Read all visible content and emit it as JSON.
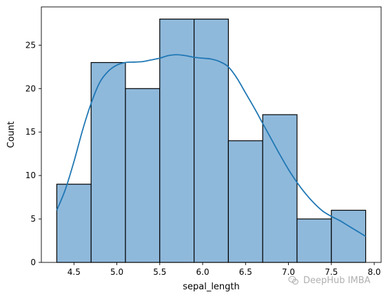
{
  "chart_data": {
    "type": "bar",
    "subtype": "histogram_with_kde",
    "title": "",
    "xlabel": "sepal_length",
    "ylabel": "Count",
    "xlim": [
      4.12,
      8.08
    ],
    "ylim": [
      0,
      29.4
    ],
    "xticks": [
      "4.5",
      "5.0",
      "5.5",
      "6.0",
      "6.5",
      "7.0",
      "7.5",
      "8.0"
    ],
    "yticks": [
      "0",
      "5",
      "10",
      "15",
      "20",
      "25"
    ],
    "bin_edges": [
      4.3,
      4.7,
      5.1,
      5.5,
      5.9,
      6.3,
      6.7,
      7.1,
      7.5,
      7.9
    ],
    "values": [
      9,
      23,
      20,
      28,
      28,
      14,
      17,
      5,
      6
    ],
    "kde": {
      "x": [
        4.3,
        4.4,
        4.5,
        4.6,
        4.7,
        4.8,
        4.9,
        5.0,
        5.1,
        5.2,
        5.3,
        5.4,
        5.5,
        5.6,
        5.7,
        5.8,
        5.9,
        6.0,
        6.1,
        6.2,
        6.3,
        6.4,
        6.5,
        6.6,
        6.7,
        6.8,
        6.9,
        7.0,
        7.1,
        7.2,
        7.3,
        7.4,
        7.5,
        7.6,
        7.7,
        7.8,
        7.9
      ],
      "y": [
        6.0,
        8.4,
        11.6,
        15.2,
        18.3,
        20.7,
        22.0,
        22.7,
        23.0,
        23.05,
        23.1,
        23.3,
        23.5,
        23.8,
        23.9,
        23.8,
        23.6,
        23.5,
        23.4,
        23.1,
        22.5,
        21.2,
        19.5,
        17.8,
        16.0,
        14.2,
        12.4,
        10.7,
        9.2,
        7.9,
        6.8,
        5.9,
        5.3,
        4.8,
        4.2,
        3.6,
        3.0
      ]
    },
    "grid": false,
    "colors": {
      "bar_fill": "#8fb9db",
      "bar_edge": "#000000",
      "kde_line": "#1f77b4"
    }
  },
  "watermark": {
    "text": "DeepHub IMBA",
    "icon": "wechat-icon"
  }
}
